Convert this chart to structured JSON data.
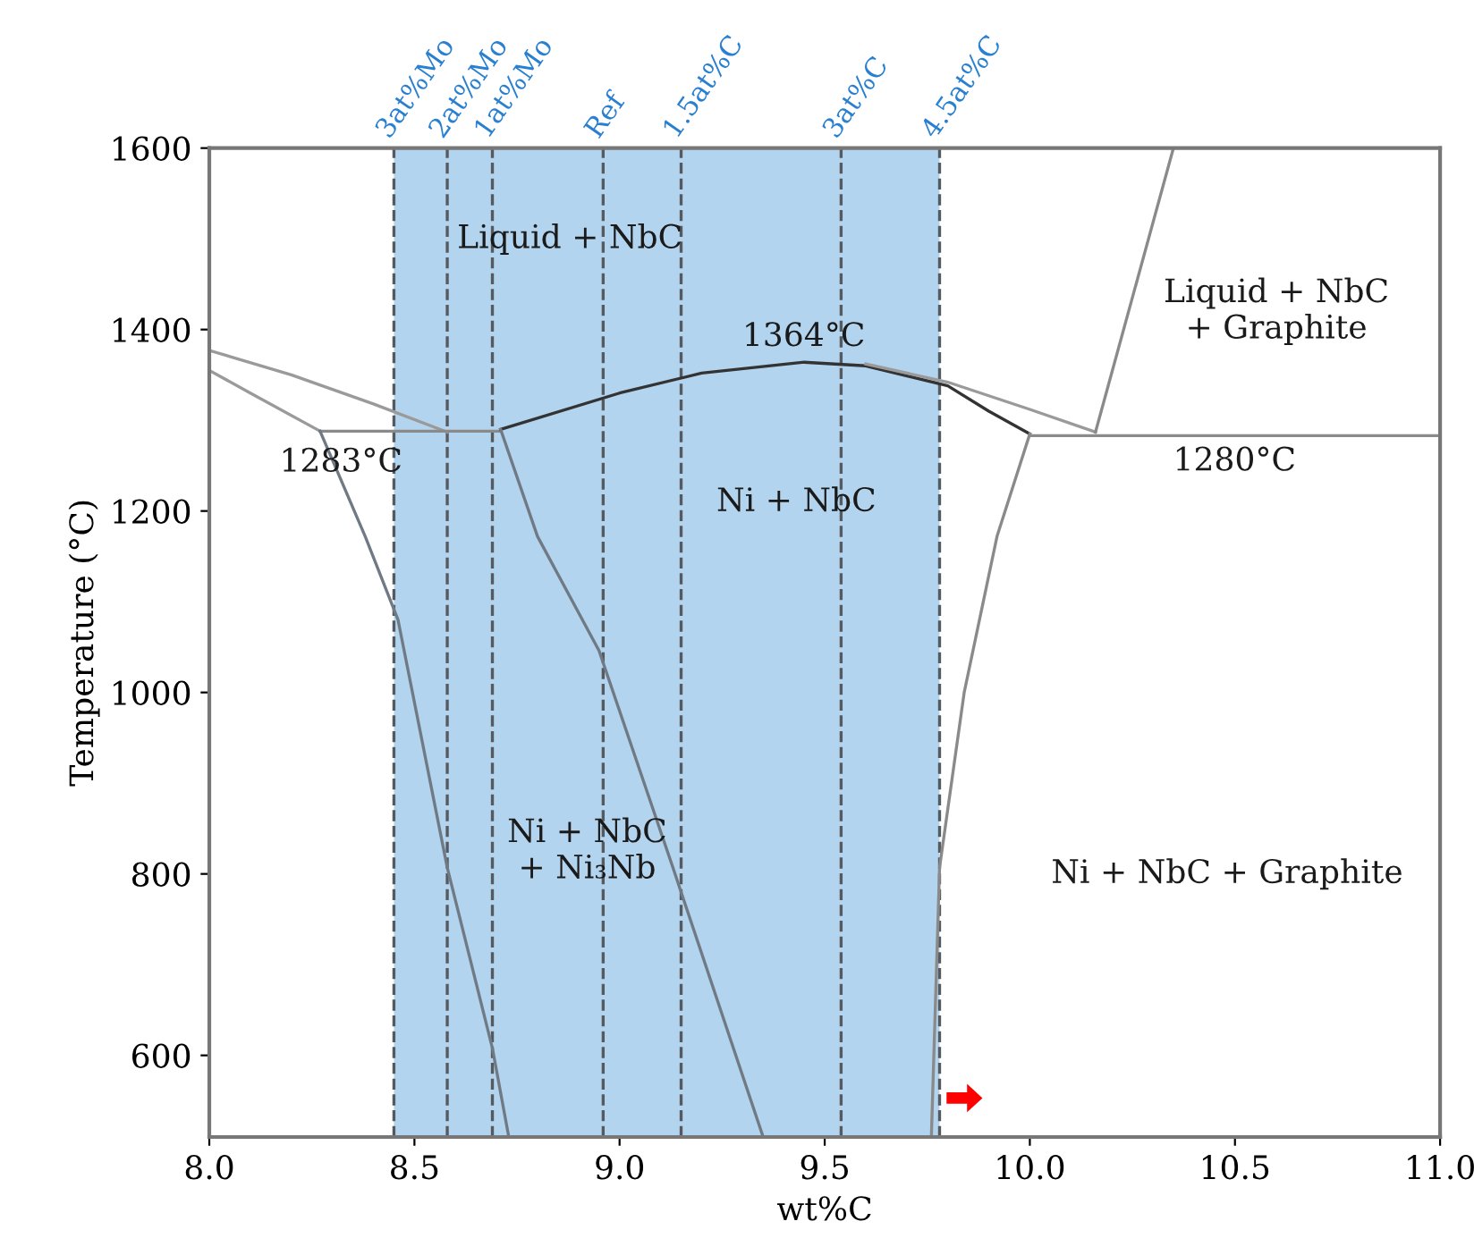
{
  "chart_data": {
    "type": "line",
    "xlabel": "wt%C",
    "ylabel": "Temperature (°C)",
    "xlim": [
      8.0,
      11.0
    ],
    "ylim": [
      510,
      1600
    ],
    "xticks": [
      {
        "value": 8.0,
        "label": "8.0"
      },
      {
        "value": 8.5,
        "label": "8.5"
      },
      {
        "value": 9.0,
        "label": "9.0"
      },
      {
        "value": 9.5,
        "label": "9.5"
      },
      {
        "value": 10.0,
        "label": "10.0"
      },
      {
        "value": 10.5,
        "label": "10.5"
      },
      {
        "value": 11.0,
        "label": "11.0"
      }
    ],
    "yticks": [
      600,
      800,
      1000,
      1200,
      1400,
      1600
    ],
    "grid": false,
    "legend": false,
    "marker": "none",
    "line_style": "solid",
    "series": [
      {
        "color": "#9a9a9a",
        "x": [
          8.0,
          8.2,
          8.4,
          8.58
        ],
        "values": [
          1377,
          1350,
          1318,
          1287
        ]
      },
      {
        "color": "#9a9a9a",
        "x": [
          8.0,
          8.1,
          8.27
        ],
        "values": [
          1355,
          1330,
          1288
        ]
      },
      {
        "color": "#8a8a8a",
        "x": [
          8.27,
          8.71
        ],
        "values": [
          1288,
          1288
        ]
      },
      {
        "color": "#333333",
        "x": [
          8.71,
          9.0,
          9.2,
          9.45,
          9.6,
          9.8,
          9.9,
          10.0
        ],
        "values": [
          1290,
          1330,
          1352,
          1364,
          1360,
          1338,
          1310,
          1285
        ]
      },
      {
        "color": "#9a9a9a",
        "x": [
          9.6,
          9.8,
          10.0,
          10.16
        ],
        "values": [
          1362,
          1342,
          1312,
          1287
        ]
      },
      {
        "color": "#8a8a8a",
        "x": [
          10.0,
          11.0
        ],
        "values": [
          1283,
          1283
        ]
      },
      {
        "color": "#8a8a8a",
        "x": [
          10.16,
          10.35
        ],
        "values": [
          1287,
          1600
        ]
      },
      {
        "color": "#707a85",
        "x": [
          8.27,
          8.38,
          8.46,
          8.58,
          8.69,
          8.73
        ],
        "values": [
          1288,
          1172,
          1080,
          807,
          608,
          510
        ]
      },
      {
        "color": "#707a85",
        "x": [
          8.71,
          8.8,
          8.95,
          9.13,
          9.35
        ],
        "values": [
          1290,
          1172,
          1046,
          807,
          510
        ]
      },
      {
        "color": "#8a8a8a",
        "x": [
          10.0,
          9.92,
          9.84,
          9.78,
          9.76
        ],
        "values": [
          1285,
          1172,
          1000,
          807,
          510
        ]
      }
    ],
    "bands": [
      {
        "axis": "x",
        "from": 8.45,
        "to": 9.78,
        "color": "#b3d4ee"
      }
    ],
    "ref_lines": [
      {
        "axis": "x",
        "value": 8.45,
        "label": "3at%Mo",
        "color": "#555a60",
        "line_style": "dashed"
      },
      {
        "axis": "x",
        "value": 8.58,
        "label": "2at%Mo",
        "color": "#555a60",
        "line_style": "dashed"
      },
      {
        "axis": "x",
        "value": 8.69,
        "label": "1at%Mo",
        "color": "#555a60",
        "line_style": "dashed"
      },
      {
        "axis": "x",
        "value": 8.96,
        "label": "Ref",
        "color": "#555a60",
        "line_style": "dashed"
      },
      {
        "axis": "x",
        "value": 9.15,
        "label": "1.5at%C",
        "color": "#555a60",
        "line_style": "dashed"
      },
      {
        "axis": "x",
        "value": 9.54,
        "label": "3at%C",
        "color": "#555a60",
        "line_style": "dashed"
      },
      {
        "axis": "x",
        "value": 9.78,
        "label": "4.5at%C",
        "color": "#555a60",
        "line_style": "dashed"
      }
    ],
    "annotations": [
      "Liquid + NbC",
      "Liquid + NbC\n+ Graphite",
      "1364°C",
      "1283°C",
      "1280°C",
      "Ni + NbC",
      "Ni + NbC\n+ Ni₃Nb",
      "Ni + NbC + Graphite"
    ]
  }
}
